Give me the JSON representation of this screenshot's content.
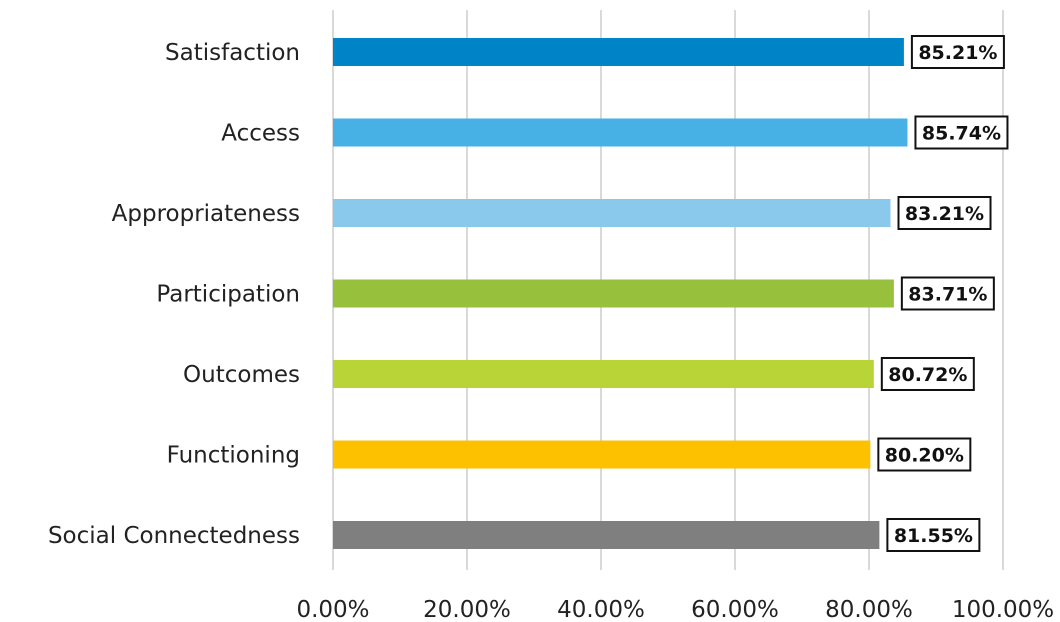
{
  "chart_data": {
    "type": "bar",
    "orientation": "horizontal",
    "categories": [
      "Satisfaction",
      "Access",
      "Appropriateness",
      "Participation",
      "Outcomes",
      "Functioning",
      "Social Connectedness"
    ],
    "values": [
      85.21,
      85.74,
      83.21,
      83.71,
      80.72,
      80.2,
      81.55
    ],
    "data_labels": [
      "85.21%",
      "85.74%",
      "83.21%",
      "83.71%",
      "80.72%",
      "80.20%",
      "81.55%"
    ],
    "colors": [
      "#0084c8",
      "#47b0e4",
      "#8ac8ec",
      "#97c03d",
      "#b8d437",
      "#fdc100",
      "#7f7f7f"
    ],
    "xlim": [
      0,
      100
    ],
    "x_ticks": [
      0,
      20,
      40,
      60,
      80,
      100
    ],
    "x_tick_labels": [
      "0.00%",
      "20.00%",
      "40.00%",
      "60.00%",
      "80.00%",
      "100.00%"
    ],
    "grid": "vertical",
    "legend": "none",
    "title": "",
    "xlabel": "",
    "ylabel": ""
  }
}
